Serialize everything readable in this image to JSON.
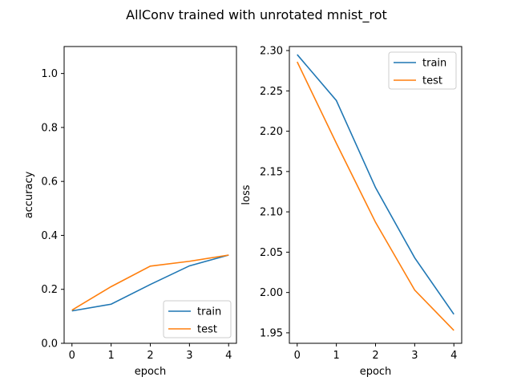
{
  "suptitle": "AllConv trained with unrotated mnist_rot",
  "colors": {
    "train": "#1f77b4",
    "test": "#ff7f0e"
  },
  "chart_data": [
    {
      "type": "line",
      "xlabel": "epoch",
      "ylabel": "accuracy",
      "xlim": [
        -0.2,
        4.2
      ],
      "ylim": [
        0.0,
        1.1
      ],
      "xticks": [
        0,
        1,
        2,
        3,
        4
      ],
      "xtick_labels": [
        "0",
        "1",
        "2",
        "3",
        "4"
      ],
      "yticks": [
        0.0,
        0.2,
        0.4,
        0.6,
        0.8,
        1.0
      ],
      "ytick_labels": [
        "0.0",
        "0.2",
        "0.4",
        "0.6",
        "0.8",
        "1.0"
      ],
      "legend_position": "lower-right",
      "grid": false,
      "x": [
        0,
        1,
        2,
        3,
        4
      ],
      "series": [
        {
          "name": "train",
          "color": "#1f77b4",
          "values": [
            0.12,
            0.145,
            0.218,
            0.287,
            0.327
          ]
        },
        {
          "name": "test",
          "color": "#ff7f0e",
          "values": [
            0.123,
            0.21,
            0.286,
            0.304,
            0.327
          ]
        }
      ]
    },
    {
      "type": "line",
      "xlabel": "epoch",
      "ylabel": "loss",
      "xlim": [
        -0.2,
        4.2
      ],
      "ylim": [
        1.937,
        2.305
      ],
      "xticks": [
        0,
        1,
        2,
        3,
        4
      ],
      "xtick_labels": [
        "0",
        "1",
        "2",
        "3",
        "4"
      ],
      "yticks": [
        1.95,
        2.0,
        2.05,
        2.1,
        2.15,
        2.2,
        2.25,
        2.3
      ],
      "ytick_labels": [
        "1.95",
        "2.00",
        "2.05",
        "2.10",
        "2.15",
        "2.20",
        "2.25",
        "2.30"
      ],
      "legend_position": "upper-right",
      "grid": false,
      "x": [
        0,
        1,
        2,
        3,
        4
      ],
      "series": [
        {
          "name": "train",
          "color": "#1f77b4",
          "values": [
            2.295,
            2.238,
            2.13,
            2.043,
            1.973
          ]
        },
        {
          "name": "test",
          "color": "#ff7f0e",
          "values": [
            2.286,
            2.185,
            2.087,
            2.003,
            1.953
          ]
        }
      ]
    }
  ]
}
